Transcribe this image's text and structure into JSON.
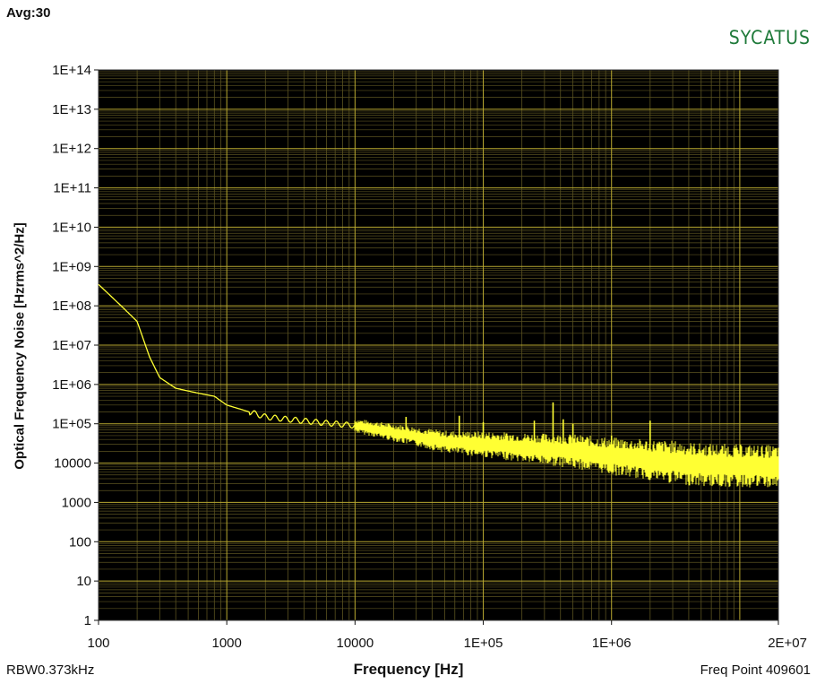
{
  "header": {
    "avg_label": "Avg:30",
    "brand": "SYCATUS"
  },
  "footer": {
    "rbw": "RBW0.373kHz",
    "freq_point": "Freq Point 409601"
  },
  "chart_data": {
    "type": "line",
    "title": "",
    "xlabel": "Frequency [Hz]",
    "ylabel": "Optical Frequency Noise [Hzrms^2/Hz]",
    "x_scale": "log",
    "y_scale": "log",
    "xlim": [
      100,
      20000000
    ],
    "ylim": [
      1,
      100000000000000
    ],
    "grid": true,
    "colors": {
      "plot_bg": "#000000",
      "grid_major": "#b8a830",
      "grid_minor": "#5a5220",
      "trace": "#ffff33"
    },
    "x_tick_labels": [
      "100",
      "1000",
      "10000",
      "1E+05",
      "1E+06",
      "2E+07"
    ],
    "x_tick_values": [
      100,
      1000,
      10000,
      100000,
      1000000,
      20000000
    ],
    "y_tick_labels": [
      "1",
      "10",
      "100",
      "1000",
      "10000",
      "1E+05",
      "1E+06",
      "1E+07",
      "1E+08",
      "1E+09",
      "1E+10",
      "1E+11",
      "1E+12",
      "1E+13",
      "1E+14"
    ],
    "y_tick_values": [
      1,
      10,
      100,
      1000,
      10000,
      100000,
      1000000,
      10000000,
      100000000,
      1000000000,
      10000000000,
      100000000000,
      1000000000000,
      10000000000000,
      100000000000000
    ],
    "series": [
      {
        "x": [
          100,
          150,
          200,
          250,
          300,
          400,
          600,
          800,
          1000,
          1500,
          2000,
          3000,
          5000,
          10000,
          20000,
          50000,
          100000,
          200000,
          500000,
          1000000,
          2000000,
          5000000,
          20000000
        ],
        "y": [
          350000000,
          100000000,
          40000000,
          5000000,
          1500000,
          800000,
          600000,
          500000,
          300000,
          200000,
          150000,
          130000,
          110000,
          90000,
          60000,
          35000,
          30000,
          25000,
          20000,
          15000,
          12000,
          9000,
          8000
        ]
      }
    ],
    "spurs": [
      {
        "x": 25000,
        "y": 150000
      },
      {
        "x": 65000,
        "y": 160000
      },
      {
        "x": 100000,
        "y": 110000
      },
      {
        "x": 150000,
        "y": 50000
      },
      {
        "x": 250000,
        "y": 120000
      },
      {
        "x": 350000,
        "y": 350000
      },
      {
        "x": 420000,
        "y": 130000
      },
      {
        "x": 500000,
        "y": 100000
      },
      {
        "x": 1000000,
        "y": 50000
      },
      {
        "x": 2000000,
        "y": 120000
      }
    ]
  }
}
